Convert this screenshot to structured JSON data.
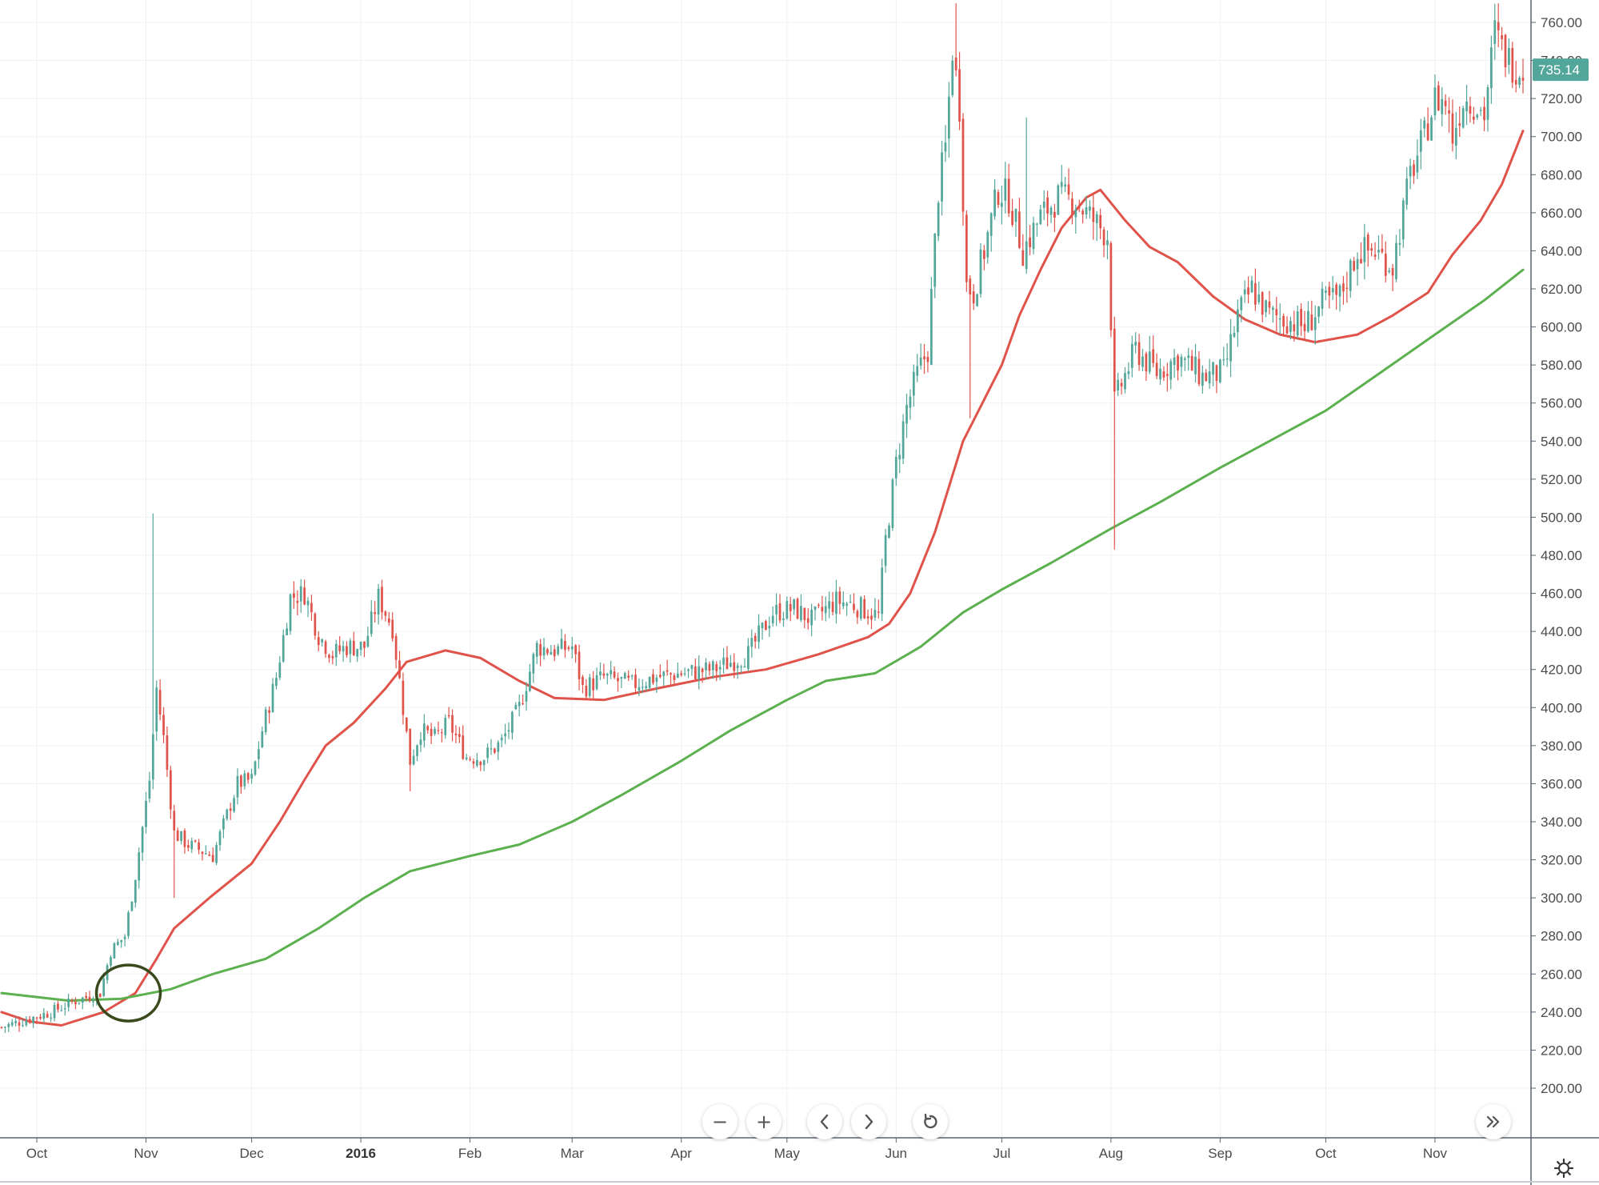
{
  "chart_data": {
    "type": "candlestick",
    "title": "",
    "xlabel": "",
    "ylabel": "",
    "ylim": [
      190,
      770
    ],
    "y_ticks": [
      "200.00",
      "220.00",
      "240.00",
      "260.00",
      "280.00",
      "300.00",
      "320.00",
      "340.00",
      "360.00",
      "380.00",
      "400.00",
      "420.00",
      "440.00",
      "460.00",
      "480.00",
      "500.00",
      "520.00",
      "540.00",
      "560.00",
      "580.00",
      "600.00",
      "620.00",
      "640.00",
      "660.00",
      "680.00",
      "700.00",
      "720.00",
      "740.00",
      "760.00"
    ],
    "x_ticks": [
      {
        "label": "Oct",
        "bold": false,
        "date": "2015-10-01"
      },
      {
        "label": "Nov",
        "bold": false,
        "date": "2015-11-01"
      },
      {
        "label": "Dec",
        "bold": false,
        "date": "2015-12-01"
      },
      {
        "label": "2016",
        "bold": true,
        "date": "2016-01-01"
      },
      {
        "label": "Feb",
        "bold": false,
        "date": "2016-02-01"
      },
      {
        "label": "Mar",
        "bold": false,
        "date": "2016-03-01"
      },
      {
        "label": "Apr",
        "bold": false,
        "date": "2016-04-01"
      },
      {
        "label": "May",
        "bold": false,
        "date": "2016-05-01"
      },
      {
        "label": "Jun",
        "bold": false,
        "date": "2016-06-01"
      },
      {
        "label": "Jul",
        "bold": false,
        "date": "2016-07-01"
      },
      {
        "label": "Aug",
        "bold": false,
        "date": "2016-08-01"
      },
      {
        "label": "Sep",
        "bold": false,
        "date": "2016-09-01"
      },
      {
        "label": "Oct",
        "bold": false,
        "date": "2016-10-01"
      },
      {
        "label": "Nov",
        "bold": false,
        "date": "2016-11-01"
      }
    ],
    "x_range": [
      "2015-09-21",
      "2016-11-26"
    ],
    "last_price": "735.14",
    "close_path": [
      [
        "2015-09-21",
        232
      ],
      [
        "2015-09-28",
        236
      ],
      [
        "2015-10-05",
        240
      ],
      [
        "2015-10-12",
        246
      ],
      [
        "2015-10-19",
        250
      ],
      [
        "2015-10-22",
        272
      ],
      [
        "2015-10-26",
        280
      ],
      [
        "2015-10-29",
        312
      ],
      [
        "2015-11-02",
        362
      ],
      [
        "2015-11-04",
        410
      ],
      [
        "2015-11-06",
        384
      ],
      [
        "2015-11-09",
        334
      ],
      [
        "2015-11-13",
        328
      ],
      [
        "2015-11-20",
        322
      ],
      [
        "2015-11-27",
        360
      ],
      [
        "2015-12-01",
        362
      ],
      [
        "2015-12-04",
        388
      ],
      [
        "2015-12-08",
        416
      ],
      [
        "2015-12-12",
        458
      ],
      [
        "2015-12-16",
        460
      ],
      [
        "2015-12-20",
        438
      ],
      [
        "2015-12-24",
        428
      ],
      [
        "2015-12-28",
        432
      ],
      [
        "2016-01-02",
        432
      ],
      [
        "2016-01-06",
        458
      ],
      [
        "2016-01-10",
        442
      ],
      [
        "2016-01-15",
        372
      ],
      [
        "2016-01-18",
        388
      ],
      [
        "2016-01-22",
        384
      ],
      [
        "2016-01-26",
        392
      ],
      [
        "2016-01-31",
        374
      ],
      [
        "2016-02-05",
        374
      ],
      [
        "2016-02-10",
        382
      ],
      [
        "2016-02-15",
        400
      ],
      [
        "2016-02-20",
        432
      ],
      [
        "2016-02-25",
        430
      ],
      [
        "2016-03-01",
        432
      ],
      [
        "2016-03-04",
        410
      ],
      [
        "2016-03-10",
        416
      ],
      [
        "2016-03-18",
        412
      ],
      [
        "2016-03-25",
        416
      ],
      [
        "2016-04-01",
        418
      ],
      [
        "2016-04-10",
        420
      ],
      [
        "2016-04-20",
        428
      ],
      [
        "2016-04-27",
        450
      ],
      [
        "2016-05-03",
        452
      ],
      [
        "2016-05-08",
        446
      ],
      [
        "2016-05-15",
        456
      ],
      [
        "2016-05-20",
        454
      ],
      [
        "2016-05-27",
        448
      ],
      [
        "2016-05-29",
        488
      ],
      [
        "2016-06-01",
        528
      ],
      [
        "2016-06-04",
        558
      ],
      [
        "2016-06-07",
        575
      ],
      [
        "2016-06-10",
        588
      ],
      [
        "2016-06-13",
        672
      ],
      [
        "2016-06-15",
        694
      ],
      [
        "2016-06-17",
        746
      ],
      [
        "2016-06-19",
        716
      ],
      [
        "2016-06-21",
        622
      ],
      [
        "2016-06-23",
        618
      ],
      [
        "2016-06-26",
        640
      ],
      [
        "2016-06-30",
        672
      ],
      [
        "2016-07-03",
        668
      ],
      [
        "2016-07-07",
        640
      ],
      [
        "2016-07-12",
        658
      ],
      [
        "2016-07-17",
        668
      ],
      [
        "2016-07-22",
        666
      ],
      [
        "2016-07-27",
        656
      ],
      [
        "2016-07-31",
        648
      ],
      [
        "2016-08-02",
        560
      ],
      [
        "2016-08-04",
        570
      ],
      [
        "2016-08-08",
        588
      ],
      [
        "2016-08-14",
        576
      ],
      [
        "2016-08-20",
        584
      ],
      [
        "2016-08-27",
        574
      ],
      [
        "2016-09-02",
        576
      ],
      [
        "2016-09-06",
        606
      ],
      [
        "2016-09-10",
        620
      ],
      [
        "2016-09-15",
        606
      ],
      [
        "2016-09-20",
        604
      ],
      [
        "2016-09-25",
        600
      ],
      [
        "2016-09-30",
        612
      ],
      [
        "2016-10-05",
        616
      ],
      [
        "2016-10-10",
        640
      ],
      [
        "2016-10-15",
        640
      ],
      [
        "2016-10-20",
        632
      ],
      [
        "2016-10-25",
        680
      ],
      [
        "2016-10-29",
        700
      ],
      [
        "2016-11-01",
        720
      ],
      [
        "2016-11-04",
        718
      ],
      [
        "2016-11-06",
        700
      ],
      [
        "2016-11-09",
        720
      ],
      [
        "2016-11-12",
        718
      ],
      [
        "2016-11-15",
        712
      ],
      [
        "2016-11-18",
        755
      ],
      [
        "2016-11-20",
        746
      ],
      [
        "2016-11-23",
        738
      ],
      [
        "2016-11-26",
        735
      ]
    ],
    "candle_highs": [
      [
        "2015-11-03",
        502
      ],
      [
        "2016-06-18",
        770
      ],
      [
        "2016-11-19",
        770
      ],
      [
        "2016-07-08",
        710
      ]
    ],
    "candle_lows": [
      [
        "2016-08-02",
        483
      ],
      [
        "2015-11-09",
        300
      ],
      [
        "2016-06-22",
        552
      ],
      [
        "2016-01-15",
        356
      ]
    ],
    "series": [
      {
        "name": "",
        "color": "#e0534a",
        "points": [
          [
            "2015-09-21",
            240
          ],
          [
            "2015-09-29",
            235
          ],
          [
            "2015-10-08",
            233
          ],
          [
            "2015-10-20",
            240
          ],
          [
            "2015-10-29",
            250
          ],
          [
            "2015-11-04",
            268
          ],
          [
            "2015-11-09",
            284
          ],
          [
            "2015-11-19",
            300
          ],
          [
            "2015-12-01",
            318
          ],
          [
            "2015-12-09",
            340
          ],
          [
            "2015-12-16",
            362
          ],
          [
            "2015-12-22",
            380
          ],
          [
            "2015-12-30",
            392
          ],
          [
            "2016-01-08",
            410
          ],
          [
            "2016-01-14",
            424
          ],
          [
            "2016-01-25",
            430
          ],
          [
            "2016-02-04",
            426
          ],
          [
            "2016-02-15",
            414
          ],
          [
            "2016-02-25",
            405
          ],
          [
            "2016-03-10",
            404
          ],
          [
            "2016-03-25",
            410
          ],
          [
            "2016-04-10",
            416
          ],
          [
            "2016-04-25",
            420
          ],
          [
            "2016-05-10",
            428
          ],
          [
            "2016-05-24",
            437
          ],
          [
            "2016-05-30",
            444
          ],
          [
            "2016-06-05",
            460
          ],
          [
            "2016-06-12",
            492
          ],
          [
            "2016-06-20",
            540
          ],
          [
            "2016-07-01",
            580
          ],
          [
            "2016-07-06",
            606
          ],
          [
            "2016-07-12",
            630
          ],
          [
            "2016-07-18",
            652
          ],
          [
            "2016-07-25",
            668
          ],
          [
            "2016-07-29",
            672
          ],
          [
            "2016-08-05",
            656
          ],
          [
            "2016-08-12",
            642
          ],
          [
            "2016-08-20",
            634
          ],
          [
            "2016-08-30",
            616
          ],
          [
            "2016-09-08",
            604
          ],
          [
            "2016-09-18",
            596
          ],
          [
            "2016-09-28",
            592
          ],
          [
            "2016-10-10",
            596
          ],
          [
            "2016-10-20",
            606
          ],
          [
            "2016-10-30",
            618
          ],
          [
            "2016-11-06",
            638
          ],
          [
            "2016-11-14",
            656
          ],
          [
            "2016-11-20",
            675
          ],
          [
            "2016-11-26",
            703
          ]
        ]
      },
      {
        "name": "",
        "color": "#5cb04f",
        "points": [
          [
            "2015-09-21",
            250
          ],
          [
            "2015-10-10",
            246
          ],
          [
            "2015-10-25",
            247
          ],
          [
            "2015-11-08",
            252
          ],
          [
            "2015-11-20",
            260
          ],
          [
            "2015-12-05",
            268
          ],
          [
            "2015-12-20",
            284
          ],
          [
            "2016-01-02",
            300
          ],
          [
            "2016-01-15",
            314
          ],
          [
            "2016-02-01",
            322
          ],
          [
            "2016-02-15",
            328
          ],
          [
            "2016-03-01",
            340
          ],
          [
            "2016-03-15",
            354
          ],
          [
            "2016-04-01",
            372
          ],
          [
            "2016-04-15",
            388
          ],
          [
            "2016-05-01",
            404
          ],
          [
            "2016-05-12",
            414
          ],
          [
            "2016-05-26",
            418
          ],
          [
            "2016-06-08",
            432
          ],
          [
            "2016-06-20",
            450
          ],
          [
            "2016-07-01",
            462
          ],
          [
            "2016-07-15",
            476
          ],
          [
            "2016-08-01",
            494
          ],
          [
            "2016-08-15",
            508
          ],
          [
            "2016-09-01",
            526
          ],
          [
            "2016-09-15",
            540
          ],
          [
            "2016-10-01",
            556
          ],
          [
            "2016-10-15",
            574
          ],
          [
            "2016-11-01",
            596
          ],
          [
            "2016-11-15",
            614
          ],
          [
            "2016-11-26",
            630
          ]
        ]
      }
    ],
    "annotation": {
      "shape": "ellipse",
      "date": "2015-10-27",
      "price": 250
    },
    "colors": {
      "up": "#53a69a",
      "down": "#e0534a",
      "grid": "#eef0f3",
      "axis_line": "#5b6473",
      "badge": "#53a69a",
      "annotation": "#3a4a1c"
    }
  },
  "toolbar": {
    "zoom_out": "−",
    "zoom_in": "+",
    "icons": [
      "zoom-out-icon",
      "zoom-in-icon",
      "scroll-left-icon",
      "scroll-right-icon",
      "reset-icon",
      "scroll-to-end-icon",
      "settings-icon"
    ]
  }
}
